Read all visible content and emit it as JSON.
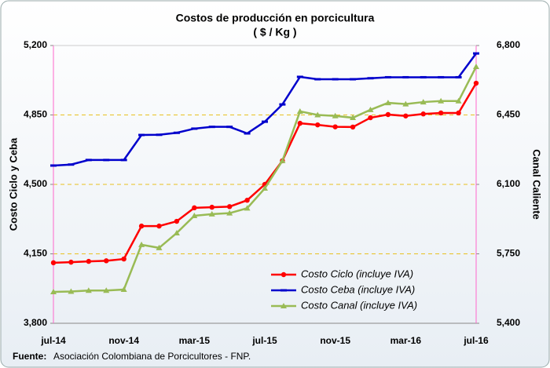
{
  "chart_data": {
    "type": "line",
    "title": "Costos de producción en porcicultura",
    "subtitle": "( $ / Kg )",
    "y_label": "Costo Ciclo y Ceba",
    "y2_label": "Canal Caliente",
    "source_label": "Fuente:",
    "source": "Asociación Colombiana de Porcicultores - FNP.",
    "categories": [
      "jul-14",
      null,
      null,
      null,
      "nov-14",
      null,
      null,
      null,
      "mar-15",
      null,
      null,
      null,
      "jul-15",
      null,
      null,
      null,
      "nov-15",
      null,
      null,
      null,
      "mar-16",
      null,
      null,
      null,
      "jul-16"
    ],
    "series": [
      {
        "name": "Costo Ciclo (incluye IVA)",
        "color": "#ff0000",
        "marker": "circle",
        "values": [
          4105,
          4108,
          4112,
          4115,
          4124,
          4290,
          4290,
          4314,
          4382,
          4385,
          4388,
          4420,
          4500,
          4619,
          4808,
          4800,
          4790,
          4789,
          4836,
          4852,
          4845,
          4855,
          4860,
          4860,
          5010
        ]
      },
      {
        "name": "Costo Ceba (incluye IVA)",
        "color": "#0000cc",
        "marker": "dash",
        "values": [
          4595,
          4600,
          4623,
          4623,
          4623,
          4749,
          4750,
          4760,
          4781,
          4790,
          4790,
          4757,
          4816,
          4903,
          5042,
          5030,
          5030,
          5030,
          5035,
          5040,
          5040,
          5040,
          5040,
          5040,
          5160
        ]
      },
      {
        "name": "Costo Canal (incluye IVA)",
        "color": "#99bb55",
        "marker": "triangle",
        "axis": "y2",
        "values": [
          5558,
          5560,
          5565,
          5565,
          5570,
          5796,
          5780,
          5855,
          5942,
          5950,
          5955,
          5980,
          6080,
          6219,
          6468,
          6450,
          6445,
          6436,
          6476,
          6511,
          6505,
          6515,
          6520,
          6520,
          6693
        ]
      }
    ],
    "ylim": [
      3800,
      5200
    ],
    "yticks": [
      {
        "value": 3800,
        "label": "3,800"
      },
      {
        "value": 4150,
        "label": "4,150"
      },
      {
        "value": 4500,
        "label": "4,500"
      },
      {
        "value": 4850,
        "label": "4,850"
      },
      {
        "value": 5200,
        "label": "5,200"
      }
    ],
    "y2lim": [
      5400,
      6800
    ],
    "y2ticks": [
      {
        "value": 5400,
        "label": "5,400"
      },
      {
        "value": 5750,
        "label": "5,750"
      },
      {
        "value": 6100,
        "label": "6,100"
      },
      {
        "value": 6450,
        "label": "6,450"
      },
      {
        "value": 6800,
        "label": "6,800"
      }
    ],
    "grid": true,
    "grid_color": "#e8c020",
    "legend": "lower right"
  }
}
